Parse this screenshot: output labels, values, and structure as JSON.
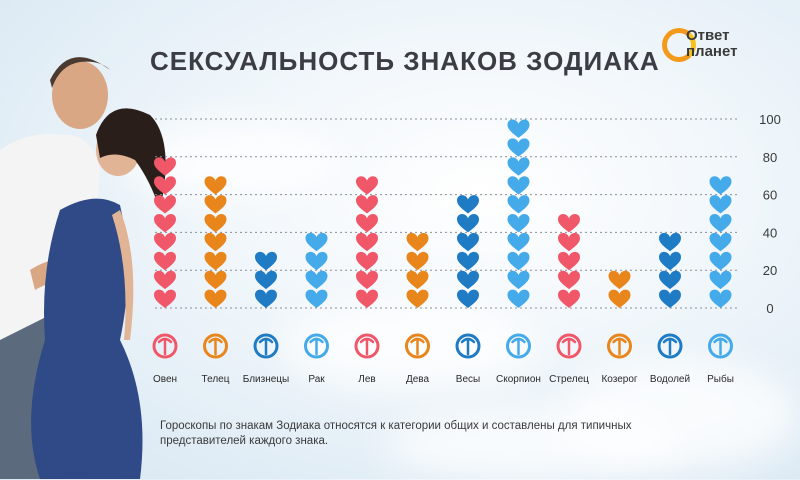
{
  "header": {
    "title": "СЕКСУАЛЬНОСТЬ ЗНАКОВ ЗОДИАКА"
  },
  "logo": {
    "line1": "Ответ",
    "line2": "планет"
  },
  "footnote": "Гороскопы по знакам Зодиака относятся к категории общих и составлены для типичных представителей каждого знака.",
  "colors": {
    "red": "#f0586a",
    "orange": "#e8861c",
    "blue": "#1e7bc4",
    "lightblue": "#45aaea"
  },
  "chart_data": {
    "type": "bar",
    "categories": [
      "Овен",
      "Телец",
      "Близнецы",
      "Рак",
      "Лев",
      "Дева",
      "Весы",
      "Скорпион",
      "Стрелец",
      "Козерог",
      "Водолей",
      "Рыбы"
    ],
    "values": [
      80,
      70,
      30,
      40,
      70,
      40,
      60,
      100,
      50,
      20,
      40,
      70
    ],
    "bar_colors": [
      "#f0586a",
      "#e8861c",
      "#1e7bc4",
      "#45aaea",
      "#f0586a",
      "#e8861c",
      "#1e7bc4",
      "#45aaea",
      "#f0586a",
      "#e8861c",
      "#1e7bc4",
      "#45aaea"
    ],
    "icons": [
      "aries-icon",
      "taurus-icon",
      "gemini-icon",
      "cancer-icon",
      "leo-icon",
      "virgo-icon",
      "libra-icon",
      "scorpio-icon",
      "sagittarius-icon",
      "capricorn-icon",
      "aquarius-icon",
      "pisces-icon"
    ],
    "yticks": [
      0,
      20,
      40,
      60,
      80,
      100
    ],
    "ylim": [
      0,
      100
    ],
    "grid": true,
    "title": "СЕКСУАЛЬНОСТЬ ЗНАКОВ ЗОДИАКА",
    "xlabel": "",
    "ylabel": ""
  }
}
